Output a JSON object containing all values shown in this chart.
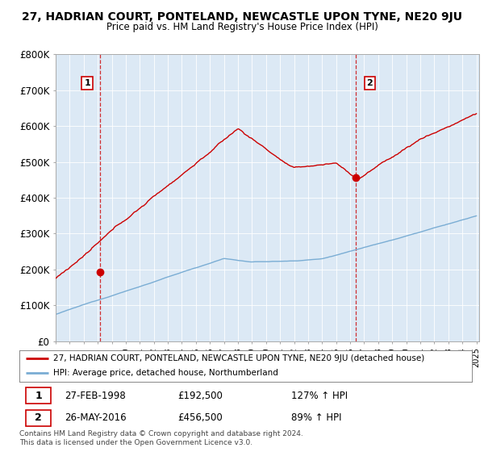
{
  "title": "27, HADRIAN COURT, PONTELAND, NEWCASTLE UPON TYNE, NE20 9JU",
  "subtitle": "Price paid vs. HM Land Registry's House Price Index (HPI)",
  "ylim": [
    0,
    800000
  ],
  "yticks": [
    0,
    100000,
    200000,
    300000,
    400000,
    500000,
    600000,
    700000,
    800000
  ],
  "ytick_labels": [
    "£0",
    "£100K",
    "£200K",
    "£300K",
    "£400K",
    "£500K",
    "£600K",
    "£700K",
    "£800K"
  ],
  "sale1": {
    "date_num": 1998.15,
    "price": 192500,
    "label": "1"
  },
  "sale2": {
    "date_num": 2016.4,
    "price": 456500,
    "label": "2"
  },
  "legend_line1": "27, HADRIAN COURT, PONTELAND, NEWCASTLE UPON TYNE, NE20 9JU (detached house)",
  "legend_line2": "HPI: Average price, detached house, Northumberland",
  "table_row1": [
    "1",
    "27-FEB-1998",
    "£192,500",
    "127% ↑ HPI"
  ],
  "table_row2": [
    "2",
    "26-MAY-2016",
    "£456,500",
    "89% ↑ HPI"
  ],
  "footer": "Contains HM Land Registry data © Crown copyright and database right 2024.\nThis data is licensed under the Open Government Licence v3.0.",
  "hpi_color": "#7aadd4",
  "price_color": "#cc0000",
  "background_color": "#ffffff",
  "plot_bg_color": "#dce9f5",
  "grid_color": "#ffffff"
}
